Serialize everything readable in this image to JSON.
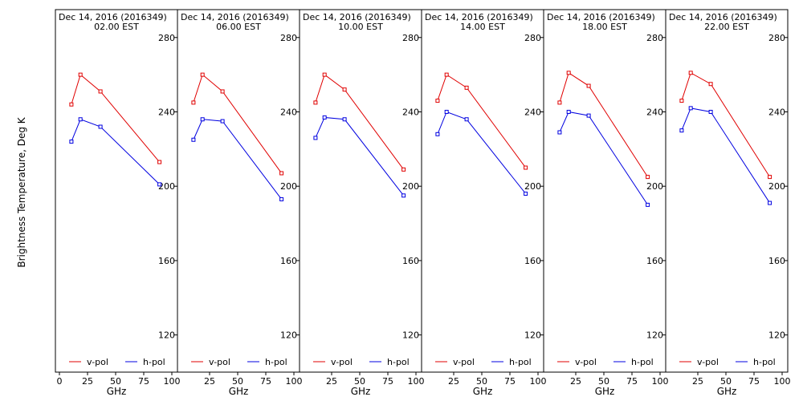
{
  "figure": {
    "ylabel": "Brightness Temperature, Deg K",
    "xlabel": "GHz",
    "x_ticks": [
      0,
      25,
      50,
      75,
      100
    ],
    "y_ticks": [
      120,
      160,
      200,
      240,
      280
    ],
    "legend": [
      {
        "name": "v-pol",
        "color": "#e00000"
      },
      {
        "name": "h-pol",
        "color": "#0000e0"
      }
    ]
  },
  "chart_data": [
    {
      "type": "line",
      "title": "Dec 14, 2016 (2016349)",
      "subtitle": "02.00 EST",
      "xlabel": "GHz",
      "ylabel": "Brightness Temperature, Deg K",
      "xlim": [
        0,
        100
      ],
      "ylim": [
        100,
        295
      ],
      "x": [
        10.65,
        18.7,
        36.5,
        89
      ],
      "series": [
        {
          "name": "v-pol",
          "values": [
            244,
            260,
            251,
            213
          ]
        },
        {
          "name": "h-pol",
          "values": [
            224,
            236,
            232,
            201
          ]
        }
      ]
    },
    {
      "type": "line",
      "title": "Dec 14, 2016 (2016349)",
      "subtitle": "06.00 EST",
      "xlabel": "GHz",
      "ylabel": "",
      "xlim": [
        0,
        100
      ],
      "ylim": [
        100,
        295
      ],
      "x": [
        10.65,
        18.7,
        36.5,
        89
      ],
      "series": [
        {
          "name": "v-pol",
          "values": [
            245,
            260,
            251,
            207
          ]
        },
        {
          "name": "h-pol",
          "values": [
            225,
            236,
            235,
            193
          ]
        }
      ]
    },
    {
      "type": "line",
      "title": "Dec 14, 2016 (2016349)",
      "subtitle": "10.00 EST",
      "xlabel": "GHz",
      "ylabel": "",
      "xlim": [
        0,
        100
      ],
      "ylim": [
        100,
        295
      ],
      "x": [
        10.65,
        18.7,
        36.5,
        89
      ],
      "series": [
        {
          "name": "v-pol",
          "values": [
            245,
            260,
            252,
            209
          ]
        },
        {
          "name": "h-pol",
          "values": [
            226,
            237,
            236,
            195
          ]
        }
      ]
    },
    {
      "type": "line",
      "title": "Dec 14, 2016 (2016349)",
      "subtitle": "14.00 EST",
      "xlabel": "GHz",
      "ylabel": "",
      "xlim": [
        0,
        100
      ],
      "ylim": [
        100,
        295
      ],
      "x": [
        10.65,
        18.7,
        36.5,
        89
      ],
      "series": [
        {
          "name": "v-pol",
          "values": [
            246,
            260,
            253,
            210
          ]
        },
        {
          "name": "h-pol",
          "values": [
            228,
            240,
            236,
            196
          ]
        }
      ]
    },
    {
      "type": "line",
      "title": "Dec 14, 2016 (2016349)",
      "subtitle": "18.00 EST",
      "xlabel": "GHz",
      "ylabel": "",
      "xlim": [
        0,
        100
      ],
      "ylim": [
        100,
        295
      ],
      "x": [
        10.65,
        18.7,
        36.5,
        89
      ],
      "series": [
        {
          "name": "v-pol",
          "values": [
            245,
            261,
            254,
            205
          ]
        },
        {
          "name": "h-pol",
          "values": [
            229,
            240,
            238,
            190
          ]
        }
      ]
    },
    {
      "type": "line",
      "title": "Dec 14, 2016 (2016349)",
      "subtitle": "22.00 EST",
      "xlabel": "GHz",
      "ylabel": "",
      "xlim": [
        0,
        100
      ],
      "ylim": [
        100,
        295
      ],
      "x": [
        10.65,
        18.7,
        36.5,
        89
      ],
      "series": [
        {
          "name": "v-pol",
          "values": [
            246,
            261,
            255,
            205
          ]
        },
        {
          "name": "h-pol",
          "values": [
            230,
            242,
            240,
            191
          ]
        }
      ]
    }
  ]
}
